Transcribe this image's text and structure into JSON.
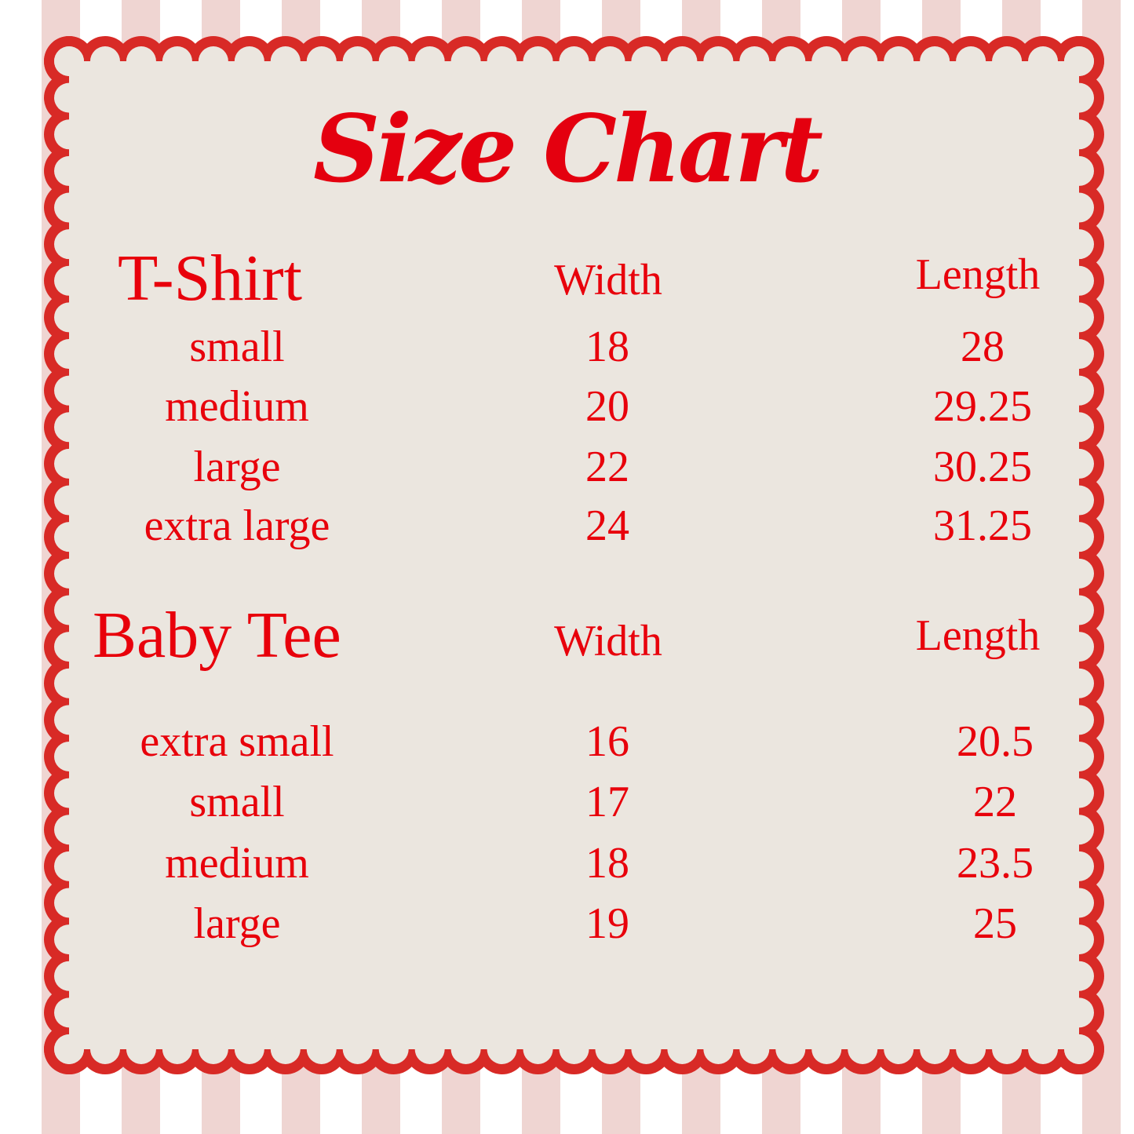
{
  "title": "Size Chart",
  "colors": {
    "text": "#e8000b",
    "border": "#d82a26",
    "panel": "#ebe6df",
    "stripe": "#efd5d2"
  },
  "sections": [
    {
      "name": "T-Shirt",
      "columns": [
        "Width",
        "Length"
      ],
      "rows": [
        {
          "size": "small",
          "width": "18",
          "length": "28"
        },
        {
          "size": "medium",
          "width": "20",
          "length": "29.25"
        },
        {
          "size": "large",
          "width": "22",
          "length": "30.25"
        },
        {
          "size": "extra large",
          "width": "24",
          "length": "31.25"
        }
      ]
    },
    {
      "name": "Baby Tee",
      "columns": [
        "Width",
        "Length"
      ],
      "rows": [
        {
          "size": "extra small",
          "width": "16",
          "length": "20.5"
        },
        {
          "size": "small",
          "width": "17",
          "length": "22"
        },
        {
          "size": "medium",
          "width": "18",
          "length": "23.5"
        },
        {
          "size": "large",
          "width": "19",
          "length": "25"
        }
      ]
    }
  ]
}
